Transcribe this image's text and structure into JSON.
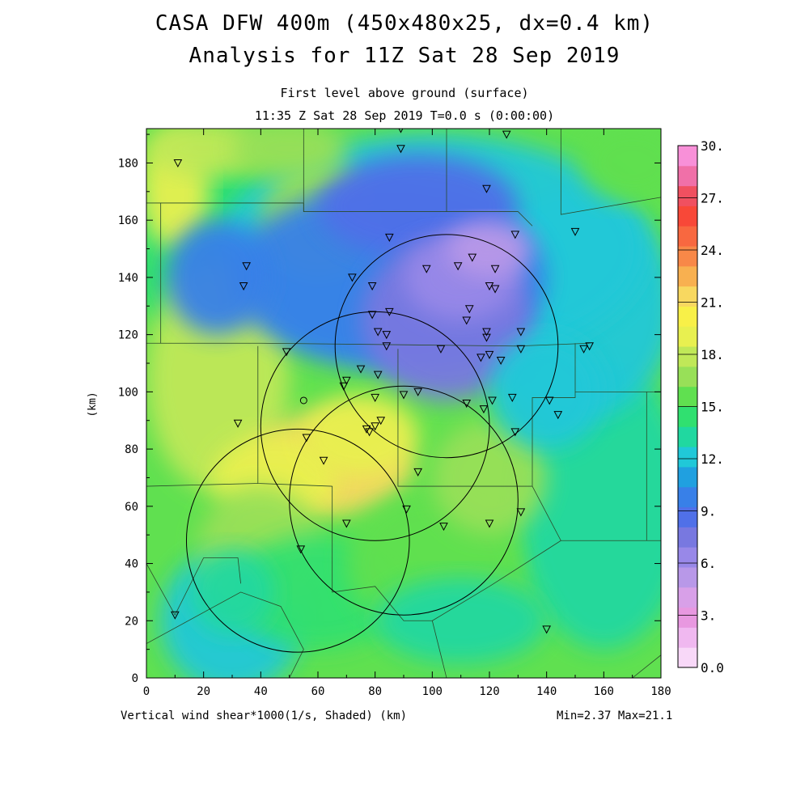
{
  "title_line1": "CASA DFW 400m (450x480x25, dx=0.4 km)",
  "title_line2": "Analysis for 11Z Sat 28 Sep 2019",
  "subtitle_line1": "First level above ground (surface)",
  "subtitle_line2": "11:35 Z Sat 28 Sep 2019   T=0.0 s (0:00:00)",
  "footer_left": "Vertical wind shear*1000(1/s, Shaded)  (km)",
  "footer_right": "Min=2.37 Max=21.1",
  "chart_data": {
    "type": "heatmap",
    "title": "First level above ground (surface)",
    "xlabel": "(km)",
    "ylabel": "(km)",
    "xlim": [
      0,
      180
    ],
    "ylim": [
      0,
      192
    ],
    "x_ticks": [
      "0",
      "20",
      "40",
      "60",
      "80",
      "100",
      "120",
      "140",
      "160",
      "180"
    ],
    "y_ticks": [
      "0",
      "20",
      "40",
      "60",
      "80",
      "100",
      "120",
      "140",
      "160",
      "180"
    ],
    "field": "Vertical wind shear*1000 (1/s)",
    "min": 2.37,
    "max": 21.1,
    "colorbar": {
      "range": [
        0,
        30
      ],
      "step": 1.5,
      "labels": [
        "0.0",
        "3.",
        "6.",
        "9.",
        "12.",
        "15.",
        "18.",
        "21.",
        "24.",
        "27.",
        "30."
      ],
      "colors": [
        "#f8d8f8",
        "#f0b8f0",
        "#e898e0",
        "#d8a0e8",
        "#b898e8",
        "#9888e8",
        "#7878e0",
        "#5070e8",
        "#3880e8",
        "#20a0e0",
        "#20c8d8",
        "#20d8a0",
        "#30e070",
        "#60e050",
        "#98e058",
        "#c0e858",
        "#e8f050",
        "#f8f048",
        "#f8d860",
        "#f8b050",
        "#f88848",
        "#f86840",
        "#f84838",
        "#f05060",
        "#f070a8",
        "#f890d8"
      ]
    },
    "radar_circles": [
      {
        "center_km": [
          53,
          48
        ],
        "radius_km": 39
      },
      {
        "center_km": [
          80,
          88
        ],
        "radius_km": 40
      },
      {
        "center_km": [
          105,
          116
        ],
        "radius_km": 39
      },
      {
        "center_km": [
          90,
          62
        ],
        "radius_km": 40
      }
    ],
    "sites_km": [
      [
        11,
        180
      ],
      [
        89,
        192
      ],
      [
        89,
        185
      ],
      [
        126,
        190
      ],
      [
        119,
        171
      ],
      [
        150,
        156
      ],
      [
        129,
        155
      ],
      [
        85,
        154
      ],
      [
        35,
        144
      ],
      [
        34,
        137
      ],
      [
        72,
        140
      ],
      [
        79,
        137
      ],
      [
        98,
        143
      ],
      [
        109,
        144
      ],
      [
        114,
        147
      ],
      [
        122,
        143
      ],
      [
        120,
        137
      ],
      [
        122,
        136
      ],
      [
        113,
        129
      ],
      [
        112,
        125
      ],
      [
        79,
        127
      ],
      [
        85,
        128
      ],
      [
        81,
        121
      ],
      [
        84,
        120
      ],
      [
        119,
        121
      ],
      [
        119,
        119
      ],
      [
        131,
        121
      ],
      [
        49,
        114
      ],
      [
        84,
        116
      ],
      [
        103,
        115
      ],
      [
        117,
        112
      ],
      [
        120,
        113
      ],
      [
        124,
        111
      ],
      [
        131,
        115
      ],
      [
        153,
        115
      ],
      [
        155,
        116
      ],
      [
        75,
        108
      ],
      [
        81,
        106
      ],
      [
        70,
        104
      ],
      [
        69,
        102
      ],
      [
        80,
        98
      ],
      [
        90,
        99
      ],
      [
        95,
        100
      ],
      [
        112,
        96
      ],
      [
        118,
        94
      ],
      [
        121,
        97
      ],
      [
        128,
        98
      ],
      [
        141,
        97
      ],
      [
        144,
        92
      ],
      [
        32,
        89
      ],
      [
        82,
        90
      ],
      [
        80,
        88
      ],
      [
        77,
        87
      ],
      [
        78,
        86
      ],
      [
        56,
        84
      ],
      [
        129,
        86
      ],
      [
        62,
        76
      ],
      [
        95,
        72
      ],
      [
        91,
        59
      ],
      [
        131,
        58
      ],
      [
        70,
        54
      ],
      [
        104,
        53
      ],
      [
        120,
        54
      ],
      [
        54,
        45
      ],
      [
        10,
        22
      ],
      [
        140,
        17
      ]
    ],
    "circle_site_km": [
      55,
      97
    ]
  }
}
